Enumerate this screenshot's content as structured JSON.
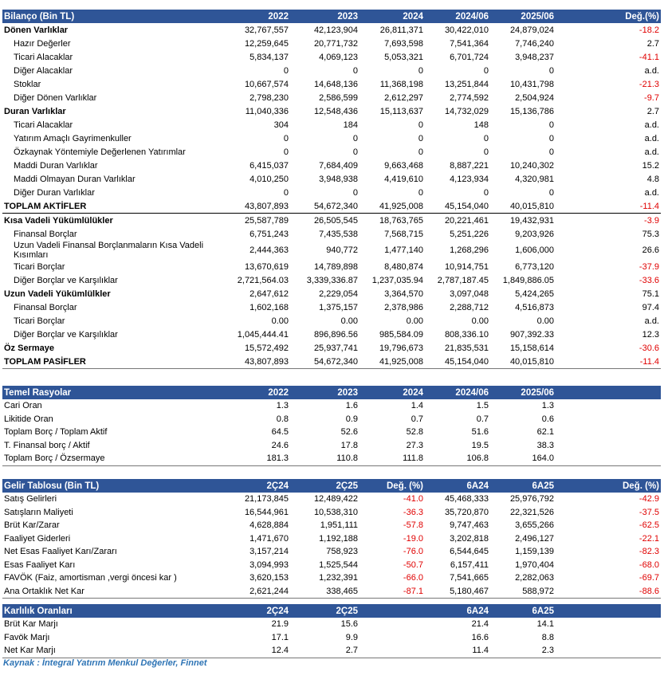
{
  "tables": [
    {
      "title": "Bilanço (Bin TL)",
      "columns": [
        "2022",
        "2023",
        "2024",
        "2024/06",
        "2025/06",
        "Değ.(%)"
      ],
      "rows": [
        {
          "label": "Dönen Varlıklar",
          "bold": true,
          "values": [
            "32,767,557",
            "42,123,904",
            "26,811,371",
            "30,422,010",
            "24,879,024",
            "-18.2"
          ]
        },
        {
          "label": "Hazır Değerler",
          "values": [
            "12,259,645",
            "20,771,732",
            "7,693,598",
            "7,541,364",
            "7,746,240",
            "2.7"
          ]
        },
        {
          "label": "Ticari Alacaklar",
          "values": [
            "5,834,137",
            "4,069,123",
            "5,053,321",
            "6,701,724",
            "3,948,237",
            "-41.1"
          ]
        },
        {
          "label": "Diğer Alacaklar",
          "values": [
            "0",
            "0",
            "0",
            "0",
            "0",
            "a.d."
          ]
        },
        {
          "label": "Stoklar",
          "values": [
            "10,667,574",
            "14,648,136",
            "11,368,198",
            "13,251,844",
            "10,431,798",
            "-21.3"
          ]
        },
        {
          "label": "Diğer Dönen Varlıklar",
          "values": [
            "2,798,230",
            "2,586,599",
            "2,612,297",
            "2,774,592",
            "2,504,924",
            "-9.7"
          ]
        },
        {
          "label": "Duran Varlıklar",
          "bold": true,
          "values": [
            "11,040,336",
            "12,548,436",
            "15,113,637",
            "14,732,029",
            "15,136,786",
            "2.7"
          ]
        },
        {
          "label": "Ticari Alacaklar",
          "values": [
            "304",
            "184",
            "0",
            "148",
            "0",
            "a.d."
          ]
        },
        {
          "label": "Yatırım Amaçlı Gayrimenkuller",
          "values": [
            "0",
            "0",
            "0",
            "0",
            "0",
            "a.d."
          ]
        },
        {
          "label": "Özkaynak Yöntemiyle Değerlenen Yatırımlar",
          "values": [
            "0",
            "0",
            "0",
            "0",
            "0",
            "a.d."
          ]
        },
        {
          "label": "Maddi Duran Varlıklar",
          "values": [
            "6,415,037",
            "7,684,409",
            "9,663,468",
            "8,887,221",
            "10,240,302",
            "15.2"
          ]
        },
        {
          "label": "Maddi Olmayan Duran Varlıklar",
          "values": [
            "4,010,250",
            "3,948,938",
            "4,419,610",
            "4,123,934",
            "4,320,981",
            "4.8"
          ]
        },
        {
          "label": "Diğer Duran Varlıklar",
          "values": [
            "0",
            "0",
            "0",
            "0",
            "0",
            "a.d."
          ]
        },
        {
          "label": "TOPLAM AKTİFLER",
          "bold": true,
          "values": [
            "43,807,893",
            "54,672,340",
            "41,925,008",
            "45,154,040",
            "40,015,810",
            "-11.4"
          ]
        },
        {
          "label": "Kısa Vadeli Yükümlülükler",
          "bold": true,
          "values": [
            "25,587,789",
            "26,505,545",
            "18,763,765",
            "20,221,461",
            "19,432,931",
            "-3.9"
          ]
        },
        {
          "label": "Finansal Borçlar",
          "values": [
            "6,751,243",
            "7,435,538",
            "7,568,715",
            "5,251,226",
            "9,203,926",
            "75.3"
          ]
        },
        {
          "label": "Uzun Vadeli Finansal Borçlanmaların Kısa Vadeli Kısımları",
          "values": [
            "2,444,363",
            "940,772",
            "1,477,140",
            "1,268,296",
            "1,606,000",
            "26.6"
          ]
        },
        {
          "label": "Ticari Borçlar",
          "values": [
            "13,670,619",
            "14,789,898",
            "8,480,874",
            "10,914,751",
            "6,773,120",
            "-37.9"
          ]
        },
        {
          "label": "Diğer Borçlar ve Karşılıklar",
          "values": [
            "2,721,564.03",
            "3,339,336.87",
            "1,237,035.94",
            "2,787,187.45",
            "1,849,886.05",
            "-33.6"
          ]
        },
        {
          "label": "Uzun Vadeli Yükümlülkler",
          "bold": true,
          "values": [
            "2,647,612",
            "2,229,054",
            "3,364,570",
            "3,097,048",
            "5,424,265",
            "75.1"
          ]
        },
        {
          "label": "Finansal Borçlar",
          "values": [
            "1,602,168",
            "1,375,157",
            "2,378,986",
            "2,288,712",
            "4,516,873",
            "97.4"
          ]
        },
        {
          "label": "Ticari Borçlar",
          "values": [
            "0.00",
            "0.00",
            "0.00",
            "0.00",
            "0.00",
            "a.d."
          ]
        },
        {
          "label": "Diğer Borçlar ve Karşılıklar",
          "values": [
            "1,045,444.41",
            "896,896.56",
            "985,584.09",
            "808,336.10",
            "907,392.33",
            "12.3"
          ]
        },
        {
          "label": "Öz Sermaye",
          "bold": true,
          "values": [
            "15,572,492",
            "25,937,741",
            "19,796,673",
            "21,835,531",
            "15,158,614",
            "-30.6"
          ]
        },
        {
          "label": "TOPLAM PASİFLER",
          "bold": true,
          "values": [
            "43,807,893",
            "54,672,340",
            "41,925,008",
            "45,154,040",
            "40,015,810",
            "-11.4"
          ]
        }
      ]
    },
    {
      "title": "Temel Rasyolar",
      "columns": [
        "2022",
        "2023",
        "2024",
        "2024/06",
        "2025/06",
        null
      ],
      "rows": [
        {
          "label": "Cari Oran",
          "values": [
            "1.3",
            "1.6",
            "1.4",
            "1.5",
            "1.3",
            null
          ]
        },
        {
          "label": "Likitide Oran",
          "values": [
            "0.8",
            "0.9",
            "0.7",
            "0.7",
            "0.6",
            null
          ]
        },
        {
          "label": "Toplam Borç / Toplam Aktif",
          "values": [
            "64.5",
            "52.6",
            "52.8",
            "51.6",
            "62.1",
            null
          ]
        },
        {
          "label": "T. Finansal borç / Aktif",
          "values": [
            "24.6",
            "17.8",
            "27.3",
            "19.5",
            "38.3",
            null
          ]
        },
        {
          "label": "Toplam Borç / Özsermaye",
          "values": [
            "181.3",
            "110.8",
            "111.8",
            "106.8",
            "164.0",
            null
          ]
        }
      ]
    },
    {
      "title": "Gelir Tablosu (Bin TL)",
      "columns": [
        "2Ç24",
        "2Ç25",
        "Değ. (%)",
        "6A24",
        "6A25",
        "Değ. (%)"
      ],
      "rows": [
        {
          "label": "Satış Gelirleri",
          "values": [
            "21,173,845",
            "12,489,422",
            "-41.0",
            "45,468,333",
            "25,976,792",
            "-42.9"
          ]
        },
        {
          "label": "Satışların Maliyeti",
          "values": [
            "16,544,961",
            "10,538,310",
            "-36.3",
            "35,720,870",
            "22,321,526",
            "-37.5"
          ]
        },
        {
          "label": "Brüt Kar/Zarar",
          "values": [
            "4,628,884",
            "1,951,111",
            "-57.8",
            "9,747,463",
            "3,655,266",
            "-62.5"
          ]
        },
        {
          "label": "Faaliyet Giderleri",
          "values": [
            "1,471,670",
            "1,192,188",
            "-19.0",
            "3,202,818",
            "2,496,127",
            "-22.1"
          ]
        },
        {
          "label": "Net Esas Faaliyet Karı/Zararı",
          "values": [
            "3,157,214",
            "758,923",
            "-76.0",
            "6,544,645",
            "1,159,139",
            "-82.3"
          ]
        },
        {
          "label": "Esas Faaliyet Karı",
          "values": [
            "3,094,993",
            "1,525,544",
            "-50.7",
            "6,157,411",
            "1,970,404",
            "-68.0"
          ]
        },
        {
          "label": "FAVÖK (Faiz, amortisman ,vergi öncesi kar )",
          "values": [
            "3,620,153",
            "1,232,391",
            "-66.0",
            "7,541,665",
            "2,282,063",
            "-69.7"
          ]
        },
        {
          "label": "Ana Ortaklık Net Kar",
          "values": [
            "2,621,244",
            "338,465",
            "-87.1",
            "5,180,467",
            "588,972",
            "-88.6"
          ]
        }
      ]
    },
    {
      "title": "Karlılık Oranları",
      "columns": [
        "2Ç24",
        "2Ç25",
        null,
        "6A24",
        "6A25",
        null
      ],
      "rows": [
        {
          "label": "Brüt Kar Marjı",
          "values": [
            "21.9",
            "15.6",
            null,
            "21.4",
            "14.1",
            null
          ]
        },
        {
          "label": "Favök Marjı",
          "values": [
            "17.1",
            "9.9",
            null,
            "16.6",
            "8.8",
            null
          ]
        },
        {
          "label": "Net Kar Marjı",
          "values": [
            "12.4",
            "2.7",
            null,
            "11.4",
            "2.3",
            null
          ]
        }
      ]
    }
  ],
  "source": "Kaynak : İntegral Yatırım Menkul Değerler, Finnet"
}
